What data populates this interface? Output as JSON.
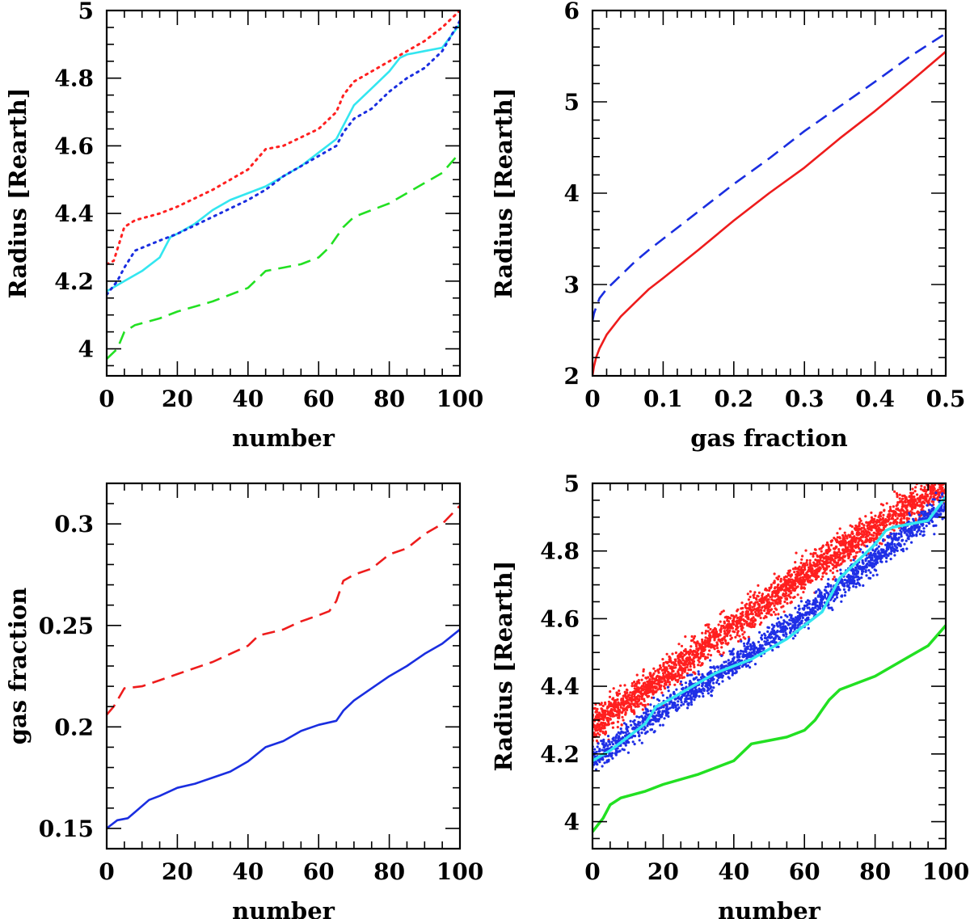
{
  "figure_title": "",
  "chart_data": [
    {
      "id": "panel-a",
      "type": "line",
      "title": "",
      "xlabel": "number",
      "ylabel": "Radius [Rearth]",
      "xlim": [
        0,
        100
      ],
      "ylim": [
        3.92,
        5.0
      ],
      "xticks": [
        0,
        20,
        40,
        60,
        80,
        100
      ],
      "xtick_labels": [
        "0",
        "20",
        "40",
        "60",
        "80",
        "100"
      ],
      "xminor": 5,
      "yticks": [
        4,
        4.2,
        4.4,
        4.6,
        4.8,
        5
      ],
      "ytick_labels": [
        "4",
        "4.2",
        "4.4",
        "4.6",
        "4.8",
        "5"
      ],
      "yminor": 0.05,
      "series": [
        {
          "name": "red dotted",
          "color": "#ff2020",
          "style": "dotted",
          "points": [
            [
              0,
              4.25
            ],
            [
              2,
              4.26
            ],
            [
              5,
              4.36
            ],
            [
              8,
              4.38
            ],
            [
              15,
              4.4
            ],
            [
              20,
              4.42
            ],
            [
              30,
              4.47
            ],
            [
              40,
              4.53
            ],
            [
              45,
              4.59
            ],
            [
              50,
              4.6
            ],
            [
              60,
              4.65
            ],
            [
              65,
              4.7
            ],
            [
              67,
              4.75
            ],
            [
              70,
              4.79
            ],
            [
              80,
              4.85
            ],
            [
              90,
              4.91
            ],
            [
              95,
              4.95
            ],
            [
              100,
              5.0
            ]
          ]
        },
        {
          "name": "cyan solid",
          "color": "#33e6f0",
          "style": "solid",
          "points": [
            [
              0,
              4.17
            ],
            [
              5,
              4.2
            ],
            [
              10,
              4.23
            ],
            [
              15,
              4.27
            ],
            [
              18,
              4.33
            ],
            [
              20,
              4.34
            ],
            [
              25,
              4.37
            ],
            [
              30,
              4.41
            ],
            [
              35,
              4.44
            ],
            [
              40,
              4.46
            ],
            [
              45,
              4.48
            ],
            [
              50,
              4.51
            ],
            [
              55,
              4.54
            ],
            [
              60,
              4.58
            ],
            [
              65,
              4.62
            ],
            [
              67,
              4.66
            ],
            [
              70,
              4.72
            ],
            [
              75,
              4.77
            ],
            [
              80,
              4.82
            ],
            [
              83,
              4.86
            ],
            [
              85,
              4.87
            ],
            [
              90,
              4.88
            ],
            [
              95,
              4.89
            ],
            [
              100,
              4.96
            ]
          ]
        },
        {
          "name": "blue dotted",
          "color": "#1a2ee0",
          "style": "dotted",
          "points": [
            [
              0,
              4.16
            ],
            [
              3,
              4.2
            ],
            [
              5,
              4.24
            ],
            [
              8,
              4.29
            ],
            [
              15,
              4.32
            ],
            [
              20,
              4.34
            ],
            [
              30,
              4.39
            ],
            [
              40,
              4.44
            ],
            [
              45,
              4.47
            ],
            [
              50,
              4.51
            ],
            [
              60,
              4.57
            ],
            [
              65,
              4.6
            ],
            [
              67,
              4.64
            ],
            [
              70,
              4.68
            ],
            [
              75,
              4.71
            ],
            [
              80,
              4.76
            ],
            [
              85,
              4.8
            ],
            [
              90,
              4.83
            ],
            [
              95,
              4.88
            ],
            [
              100,
              4.97
            ]
          ]
        },
        {
          "name": "green dashed",
          "color": "#22e022",
          "style": "dashed",
          "points": [
            [
              0,
              3.97
            ],
            [
              3,
              4.0
            ],
            [
              5,
              4.05
            ],
            [
              8,
              4.07
            ],
            [
              15,
              4.09
            ],
            [
              20,
              4.11
            ],
            [
              30,
              4.14
            ],
            [
              40,
              4.18
            ],
            [
              43,
              4.21
            ],
            [
              45,
              4.23
            ],
            [
              50,
              4.24
            ],
            [
              55,
              4.25
            ],
            [
              60,
              4.27
            ],
            [
              63,
              4.3
            ],
            [
              65,
              4.33
            ],
            [
              67,
              4.36
            ],
            [
              70,
              4.39
            ],
            [
              80,
              4.43
            ],
            [
              90,
              4.49
            ],
            [
              95,
              4.52
            ],
            [
              100,
              4.58
            ]
          ]
        }
      ]
    },
    {
      "id": "panel-b",
      "type": "line",
      "title": "",
      "xlabel": "gas fraction",
      "ylabel": "Radius [Rearth]",
      "xlim": [
        0,
        0.5
      ],
      "ylim": [
        2,
        6
      ],
      "xticks": [
        0,
        0.1,
        0.2,
        0.3,
        0.4,
        0.5
      ],
      "xtick_labels": [
        "0",
        "0.1",
        "0.2",
        "0.3",
        "0.4",
        "0.5"
      ],
      "xminor": 0.02,
      "yticks": [
        2,
        3,
        4,
        5,
        6
      ],
      "ytick_labels": [
        "2",
        "3",
        "4",
        "5",
        "6"
      ],
      "yminor": 0.2,
      "series": [
        {
          "name": "red solid",
          "color": "#ee1c1c",
          "style": "solid",
          "points": [
            [
              0,
              2.0
            ],
            [
              0.002,
              2.1
            ],
            [
              0.005,
              2.2
            ],
            [
              0.01,
              2.3
            ],
            [
              0.02,
              2.45
            ],
            [
              0.04,
              2.65
            ],
            [
              0.06,
              2.8
            ],
            [
              0.08,
              2.95
            ],
            [
              0.1,
              3.07
            ],
            [
              0.15,
              3.38
            ],
            [
              0.2,
              3.7
            ],
            [
              0.25,
              4.0
            ],
            [
              0.3,
              4.28
            ],
            [
              0.35,
              4.6
            ],
            [
              0.4,
              4.9
            ],
            [
              0.45,
              5.22
            ],
            [
              0.5,
              5.55
            ]
          ]
        },
        {
          "name": "blue dashed",
          "color": "#1a2ee0",
          "style": "dashed",
          "points": [
            [
              0,
              2.6
            ],
            [
              0.002,
              2.68
            ],
            [
              0.005,
              2.75
            ],
            [
              0.01,
              2.85
            ],
            [
              0.02,
              2.95
            ],
            [
              0.04,
              3.1
            ],
            [
              0.06,
              3.25
            ],
            [
              0.08,
              3.38
            ],
            [
              0.1,
              3.5
            ],
            [
              0.15,
              3.8
            ],
            [
              0.2,
              4.1
            ],
            [
              0.25,
              4.38
            ],
            [
              0.3,
              4.68
            ],
            [
              0.35,
              4.95
            ],
            [
              0.4,
              5.22
            ],
            [
              0.45,
              5.5
            ],
            [
              0.5,
              5.75
            ]
          ]
        }
      ]
    },
    {
      "id": "panel-c",
      "type": "line",
      "title": "",
      "xlabel": "number",
      "ylabel": "gas fraction",
      "xlim": [
        0,
        100
      ],
      "ylim": [
        0.14,
        0.32
      ],
      "xticks": [
        0,
        20,
        40,
        60,
        80,
        100
      ],
      "xtick_labels": [
        "0",
        "20",
        "40",
        "60",
        "80",
        "100"
      ],
      "xminor": 5,
      "yticks": [
        0.15,
        0.2,
        0.25,
        0.3
      ],
      "ytick_labels": [
        "0.15",
        "0.2",
        "0.25",
        "0.3"
      ],
      "yminor": 0.01,
      "series": [
        {
          "name": "red dashed",
          "color": "#ee1c1c",
          "style": "dashed",
          "points": [
            [
              0,
              0.206
            ],
            [
              2,
              0.21
            ],
            [
              5,
              0.219
            ],
            [
              10,
              0.22
            ],
            [
              15,
              0.223
            ],
            [
              20,
              0.226
            ],
            [
              30,
              0.232
            ],
            [
              40,
              0.24
            ],
            [
              43,
              0.245
            ],
            [
              50,
              0.248
            ],
            [
              55,
              0.252
            ],
            [
              60,
              0.255
            ],
            [
              63,
              0.257
            ],
            [
              65,
              0.262
            ],
            [
              67,
              0.272
            ],
            [
              70,
              0.275
            ],
            [
              75,
              0.278
            ],
            [
              80,
              0.285
            ],
            [
              85,
              0.288
            ],
            [
              90,
              0.295
            ],
            [
              95,
              0.3
            ],
            [
              100,
              0.309
            ]
          ]
        },
        {
          "name": "blue solid",
          "color": "#1a2ee0",
          "style": "solid",
          "points": [
            [
              0,
              0.15
            ],
            [
              3,
              0.154
            ],
            [
              6,
              0.155
            ],
            [
              8,
              0.158
            ],
            [
              12,
              0.164
            ],
            [
              15,
              0.166
            ],
            [
              20,
              0.17
            ],
            [
              25,
              0.172
            ],
            [
              30,
              0.175
            ],
            [
              35,
              0.178
            ],
            [
              40,
              0.183
            ],
            [
              45,
              0.19
            ],
            [
              50,
              0.193
            ],
            [
              55,
              0.198
            ],
            [
              60,
              0.201
            ],
            [
              65,
              0.203
            ],
            [
              67,
              0.208
            ],
            [
              70,
              0.213
            ],
            [
              75,
              0.219
            ],
            [
              80,
              0.225
            ],
            [
              85,
              0.23
            ],
            [
              90,
              0.236
            ],
            [
              95,
              0.241
            ],
            [
              100,
              0.248
            ]
          ]
        }
      ]
    },
    {
      "id": "panel-d",
      "type": "scatter",
      "title": "",
      "xlabel": "number",
      "ylabel": "Radius [Rearth]",
      "xlim": [
        0,
        100
      ],
      "ylim": [
        3.92,
        5.0
      ],
      "xticks": [
        0,
        20,
        40,
        60,
        80,
        100
      ],
      "xtick_labels": [
        "0",
        "20",
        "40",
        "60",
        "80",
        "100"
      ],
      "xminor": 5,
      "yticks": [
        4,
        4.2,
        4.4,
        4.6,
        4.8,
        5
      ],
      "ytick_labels": [
        "4",
        "4.2",
        "4.4",
        "4.6",
        "4.8",
        "5"
      ],
      "yminor": 0.05,
      "bands": [
        {
          "name": "red scatter band",
          "color": "#ff1f1f",
          "center": [
            [
              0,
              4.28
            ],
            [
              20,
              4.43
            ],
            [
              40,
              4.58
            ],
            [
              60,
              4.73
            ],
            [
              80,
              4.87
            ],
            [
              100,
              5.0
            ]
          ],
          "spread": 0.07,
          "count": 2600
        },
        {
          "name": "blue scatter band",
          "color": "#1f2fe6",
          "center": [
            [
              0,
              4.18
            ],
            [
              20,
              4.33
            ],
            [
              40,
              4.47
            ],
            [
              60,
              4.61
            ],
            [
              80,
              4.78
            ],
            [
              100,
              4.94
            ]
          ],
          "spread": 0.055,
          "count": 1800
        }
      ],
      "series": [
        {
          "name": "cyan solid",
          "color": "#33e6f0",
          "style": "solid",
          "width": 3.5,
          "points": [
            [
              0,
              4.18
            ],
            [
              5,
              4.21
            ],
            [
              10,
              4.25
            ],
            [
              15,
              4.29
            ],
            [
              18,
              4.34
            ],
            [
              20,
              4.35
            ],
            [
              25,
              4.38
            ],
            [
              30,
              4.41
            ],
            [
              35,
              4.44
            ],
            [
              40,
              4.46
            ],
            [
              45,
              4.48
            ],
            [
              50,
              4.51
            ],
            [
              55,
              4.54
            ],
            [
              60,
              4.58
            ],
            [
              65,
              4.62
            ],
            [
              67,
              4.66
            ],
            [
              70,
              4.72
            ],
            [
              75,
              4.77
            ],
            [
              80,
              4.82
            ],
            [
              83,
              4.86
            ],
            [
              85,
              4.87
            ],
            [
              90,
              4.88
            ],
            [
              95,
              4.89
            ],
            [
              100,
              4.96
            ]
          ]
        },
        {
          "name": "green solid",
          "color": "#22e022",
          "style": "solid",
          "width": 3.5,
          "points": [
            [
              0,
              3.97
            ],
            [
              3,
              4.01
            ],
            [
              5,
              4.05
            ],
            [
              8,
              4.07
            ],
            [
              15,
              4.09
            ],
            [
              20,
              4.11
            ],
            [
              30,
              4.14
            ],
            [
              40,
              4.18
            ],
            [
              43,
              4.21
            ],
            [
              45,
              4.23
            ],
            [
              50,
              4.24
            ],
            [
              55,
              4.25
            ],
            [
              60,
              4.27
            ],
            [
              63,
              4.3
            ],
            [
              65,
              4.33
            ],
            [
              67,
              4.36
            ],
            [
              70,
              4.39
            ],
            [
              80,
              4.43
            ],
            [
              90,
              4.49
            ],
            [
              95,
              4.52
            ],
            [
              100,
              4.58
            ]
          ]
        }
      ]
    }
  ]
}
